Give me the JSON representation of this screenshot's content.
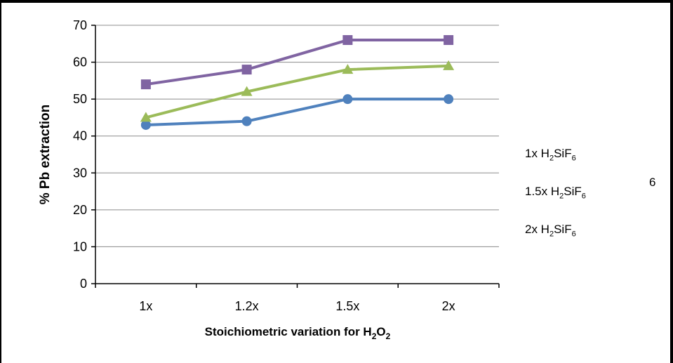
{
  "chart_data": {
    "type": "line",
    "categories": [
      "1x",
      "1.2x",
      "1.5x",
      "2x"
    ],
    "series": [
      {
        "name": "1x H2SiF6",
        "name_base": "1x H",
        "name_sub1": "2",
        "name_mid": "SiF",
        "name_sub2": "6",
        "marker": "circle",
        "color": "#4F81BD",
        "values": [
          43,
          44,
          50,
          50
        ]
      },
      {
        "name": "1.5x H2SiF6",
        "name_base": "1.5x H",
        "name_sub1": "2",
        "name_mid": "SiF",
        "name_sub2": "6",
        "marker": "triangle",
        "color": "#9BBB59",
        "values": [
          45,
          52,
          58,
          59
        ]
      },
      {
        "name": "2x H2SiF6",
        "name_base": "2x H",
        "name_sub1": "2",
        "name_mid": "SiF",
        "name_sub2": "6",
        "marker": "square",
        "color": "#8064A2",
        "values": [
          54,
          58,
          66,
          66
        ]
      }
    ],
    "ylabel": "% Pb extraction",
    "xlabel_parts": {
      "base": "Stoichiometric variation for H",
      "sub1": "2",
      "mid": "O",
      "sub2": "2"
    },
    "ylim": [
      0,
      70
    ],
    "yticks": [
      0,
      10,
      20,
      30,
      40,
      50,
      60,
      70
    ],
    "grid": true,
    "legend_position": "right",
    "stray_label": "6"
  }
}
